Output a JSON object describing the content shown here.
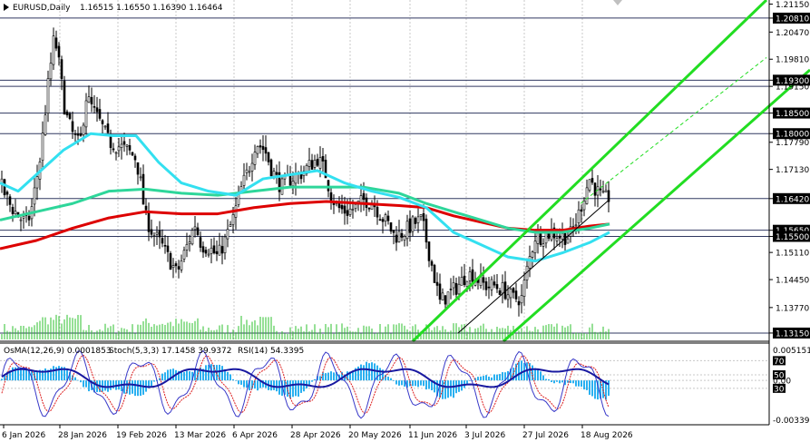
{
  "main_header": {
    "symbol_label": "EURUSD,Daily",
    "ohlc_label": "1.16515 1.16550 1.16390 1.16464"
  },
  "indicator_header": {
    "osma_label": "OsMA(12,26,9) 0.0001853",
    "stoch_label": "Stoch(5,3,3) 17.1458 39.9372",
    "rsi_label": "RSI(14) 54.3395"
  },
  "price_axis": [
    {
      "price": 1.2115,
      "label": "1.21150",
      "box": false
    },
    {
      "price": 1.2081,
      "label": "1.20810",
      "box": true
    },
    {
      "price": 1.2047,
      "label": "1.20470",
      "box": false
    },
    {
      "price": 1.1981,
      "label": "1.19810",
      "box": false
    },
    {
      "price": 1.193,
      "label": "1.19300",
      "box": true
    },
    {
      "price": 1.1915,
      "label": "1.19150",
      "box": false
    },
    {
      "price": 1.185,
      "label": "1.18500",
      "box": true
    },
    {
      "price": 1.18,
      "label": "1.18000",
      "box": true
    },
    {
      "price": 1.1779,
      "label": "1.17790",
      "box": false
    },
    {
      "price": 1.1713,
      "label": "1.17130",
      "box": false
    },
    {
      "price": 1.1642,
      "label": "1.16420",
      "box": true
    },
    {
      "price": 1.1565,
      "label": "1.15650",
      "box": true
    },
    {
      "price": 1.155,
      "label": "1.15500",
      "box": true
    },
    {
      "price": 1.1511,
      "label": "1.15110",
      "box": false
    },
    {
      "price": 1.1445,
      "label": "1.14450",
      "box": false
    },
    {
      "price": 1.1377,
      "label": "1.13770",
      "box": false
    },
    {
      "price": 1.1315,
      "label": "1.13150",
      "box": true
    }
  ],
  "indicator_axis": [
    {
      "label": "0.005151",
      "value": 1.0
    },
    {
      "label": "70",
      "value": 0.8
    },
    {
      "label": "50",
      "value": 0.62
    },
    {
      "label": "30",
      "value": 0.45
    },
    {
      "label": "0.00",
      "value": 0.55
    },
    {
      "label": "-0.00339",
      "value": 0.0
    }
  ],
  "time_axis": [
    "6 Jan 2026",
    "28 Jan 2026",
    "19 Feb 2026",
    "13 Mar 2026",
    "6 Apr 2026",
    "28 Apr 2026",
    "20 May 2026",
    "11 Jun 2026",
    "3 Jul 2026",
    "27 Jul 2026",
    "18 Aug 2026"
  ],
  "horizontal_levels": [
    1.2081,
    1.193,
    1.1915,
    1.185,
    1.18,
    1.1642,
    1.1565,
    1.155,
    1.1315
  ],
  "colors": {
    "candle": "#000000",
    "ema_fast": "#33e0f0",
    "ema_mid": "#2ed69a",
    "ema_slow": "#dd0000",
    "channel": "#22dd22",
    "volume": "#2ec02e",
    "level_line": "#303860",
    "osma_hist": "#2ab0f0",
    "stoch_main": "#3838c8",
    "stoch_signal": "#dd2020",
    "rsi": "#1818a0",
    "price_box": "#000000"
  },
  "chart_data": {
    "type": "candlestick",
    "symbol": "EURUSD",
    "timeframe": "Daily",
    "ylim": [
      1.1295,
      1.2125
    ],
    "close_path": [
      [
        0,
        1.168
      ],
      [
        10,
        1.163
      ],
      [
        20,
        1.16
      ],
      [
        30,
        1.158
      ],
      [
        35,
        1.162
      ],
      [
        45,
        1.175
      ],
      [
        52,
        1.19
      ],
      [
        60,
        1.204
      ],
      [
        65,
        1.197
      ],
      [
        72,
        1.185
      ],
      [
        80,
        1.18
      ],
      [
        88,
        1.177
      ],
      [
        95,
        1.189
      ],
      [
        102,
        1.186
      ],
      [
        112,
        1.182
      ],
      [
        120,
        1.178
      ],
      [
        130,
        1.177
      ],
      [
        140,
        1.176
      ],
      [
        150,
        1.174
      ],
      [
        155,
        1.168
      ],
      [
        160,
        1.16
      ],
      [
        168,
        1.156
      ],
      [
        178,
        1.153
      ],
      [
        185,
        1.15
      ],
      [
        195,
        1.146
      ],
      [
        205,
        1.152
      ],
      [
        215,
        1.158
      ],
      [
        222,
        1.153
      ],
      [
        232,
        1.152
      ],
      [
        240,
        1.15
      ],
      [
        250,
        1.155
      ],
      [
        258,
        1.16
      ],
      [
        265,
        1.166
      ],
      [
        275,
        1.172
      ],
      [
        282,
        1.178
      ],
      [
        292,
        1.176
      ],
      [
        300,
        1.171
      ],
      [
        310,
        1.167
      ],
      [
        320,
        1.169
      ],
      [
        330,
        1.17
      ],
      [
        340,
        1.172
      ],
      [
        350,
        1.174
      ],
      [
        358,
        1.171
      ],
      [
        365,
        1.165
      ],
      [
        372,
        1.162
      ],
      [
        382,
        1.161
      ],
      [
        392,
        1.162
      ],
      [
        402,
        1.164
      ],
      [
        412,
        1.163
      ],
      [
        420,
        1.16
      ],
      [
        428,
        1.158
      ],
      [
        435,
        1.155
      ],
      [
        445,
        1.156
      ],
      [
        455,
        1.158
      ],
      [
        465,
        1.159
      ],
      [
        472,
        1.152
      ],
      [
        478,
        1.146
      ],
      [
        485,
        1.139
      ],
      [
        495,
        1.141
      ],
      [
        505,
        1.143
      ],
      [
        515,
        1.146
      ],
      [
        525,
        1.145
      ],
      [
        535,
        1.143
      ],
      [
        545,
        1.143
      ],
      [
        555,
        1.142
      ],
      [
        565,
        1.14
      ],
      [
        575,
        1.14
      ],
      [
        582,
        1.148
      ],
      [
        590,
        1.155
      ],
      [
        598,
        1.155
      ],
      [
        608,
        1.156
      ],
      [
        618,
        1.155
      ],
      [
        628,
        1.155
      ],
      [
        636,
        1.159
      ],
      [
        644,
        1.165
      ],
      [
        650,
        1.169
      ],
      [
        658,
        1.166
      ],
      [
        665,
        1.164
      ],
      [
        672,
        1.1646
      ]
    ],
    "ema_fast": [
      [
        0,
        1.168
      ],
      [
        20,
        1.166
      ],
      [
        40,
        1.17
      ],
      [
        70,
        1.176
      ],
      [
        100,
        1.18
      ],
      [
        125,
        1.1795
      ],
      [
        150,
        1.1795
      ],
      [
        175,
        1.173
      ],
      [
        200,
        1.168
      ],
      [
        230,
        1.166
      ],
      [
        260,
        1.165
      ],
      [
        290,
        1.169
      ],
      [
        320,
        1.17
      ],
      [
        350,
        1.171
      ],
      [
        380,
        1.168
      ],
      [
        410,
        1.166
      ],
      [
        440,
        1.1645
      ],
      [
        470,
        1.162
      ],
      [
        500,
        1.156
      ],
      [
        530,
        1.153
      ],
      [
        560,
        1.15
      ],
      [
        590,
        1.149
      ],
      [
        620,
        1.151
      ],
      [
        650,
        1.1535
      ],
      [
        672,
        1.156
      ]
    ],
    "ema_mid": [
      [
        0,
        1.159
      ],
      [
        40,
        1.161
      ],
      [
        80,
        1.163
      ],
      [
        120,
        1.166
      ],
      [
        160,
        1.1665
      ],
      [
        200,
        1.1655
      ],
      [
        240,
        1.165
      ],
      [
        280,
        1.166
      ],
      [
        320,
        1.167
      ],
      [
        360,
        1.167
      ],
      [
        400,
        1.167
      ],
      [
        440,
        1.1655
      ],
      [
        470,
        1.163
      ],
      [
        500,
        1.161
      ],
      [
        530,
        1.159
      ],
      [
        560,
        1.157
      ],
      [
        590,
        1.156
      ],
      [
        620,
        1.156
      ],
      [
        650,
        1.157
      ],
      [
        672,
        1.158
      ]
    ],
    "ema_slow": [
      [
        0,
        1.152
      ],
      [
        40,
        1.154
      ],
      [
        80,
        1.157
      ],
      [
        120,
        1.1595
      ],
      [
        160,
        1.161
      ],
      [
        200,
        1.1605
      ],
      [
        240,
        1.1605
      ],
      [
        280,
        1.162
      ],
      [
        320,
        1.163
      ],
      [
        360,
        1.1635
      ],
      [
        400,
        1.163
      ],
      [
        440,
        1.1625
      ],
      [
        470,
        1.162
      ],
      [
        500,
        1.16
      ],
      [
        530,
        1.1585
      ],
      [
        560,
        1.157
      ],
      [
        590,
        1.1565
      ],
      [
        620,
        1.1565
      ],
      [
        650,
        1.1575
      ],
      [
        672,
        1.158
      ]
    ],
    "channel_lines": [
      {
        "from": [
          455,
          1.1295
        ],
        "to": [
          845,
          1.2125
        ]
      },
      {
        "from": [
          555,
          1.1295
        ],
        "to": [
          893,
          1.1955
        ]
      }
    ],
    "channel_dashed": {
      "from": [
        640,
        1.163
      ],
      "to": [
        845,
        1.1985
      ]
    },
    "series": [
      {
        "name": "OsMA(12,26,9)",
        "value": 0.0001853
      },
      {
        "name": "Stoch(5,3,3)",
        "main": 17.1458,
        "signal": 39.9372
      },
      {
        "name": "RSI(14)",
        "value": 54.3395
      }
    ]
  }
}
